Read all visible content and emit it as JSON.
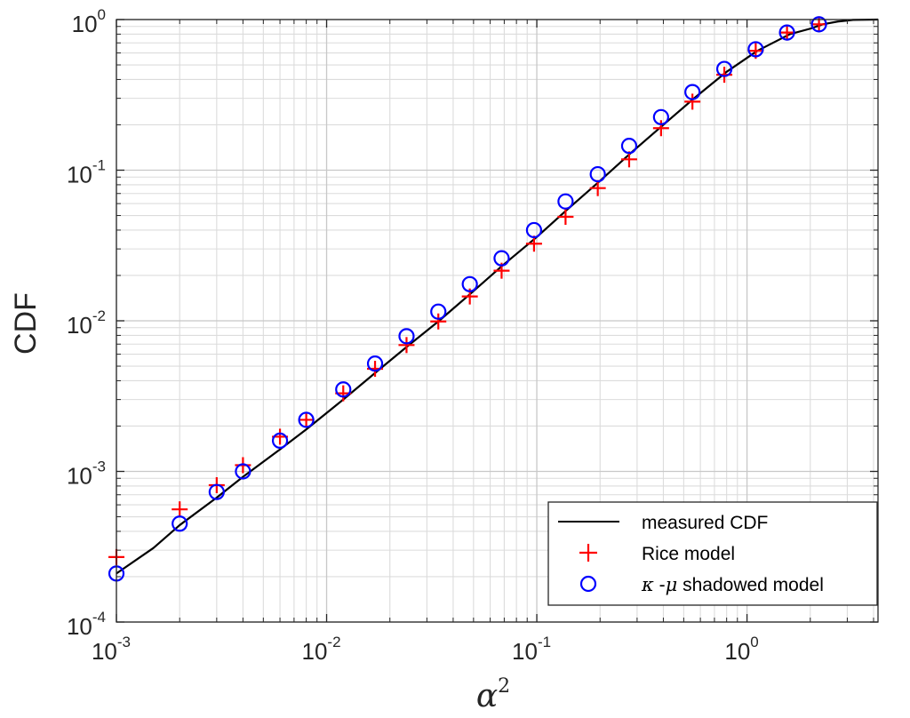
{
  "chart_data": {
    "type": "line",
    "xlabel": "α",
    "xlabel_superscript": "2",
    "ylabel": "CDF",
    "x_scale": "log",
    "y_scale": "log",
    "xlim": [
      0.001,
      4.2
    ],
    "ylim": [
      0.0001,
      1
    ],
    "grid": true,
    "legend_position": "bottom-right",
    "x_ticks": [
      {
        "base": "10",
        "exp": "-3",
        "value": 0.001
      },
      {
        "base": "10",
        "exp": "-2",
        "value": 0.01
      },
      {
        "base": "10",
        "exp": "-1",
        "value": 0.1
      },
      {
        "base": "10",
        "exp": "0",
        "value": 1
      }
    ],
    "y_ticks": [
      {
        "base": "10",
        "exp": "-4",
        "value": 0.0001
      },
      {
        "base": "10",
        "exp": "-3",
        "value": 0.001
      },
      {
        "base": "10",
        "exp": "-2",
        "value": 0.01
      },
      {
        "base": "10",
        "exp": "-1",
        "value": 0.1
      },
      {
        "base": "10",
        "exp": "0",
        "value": 1
      }
    ],
    "series": [
      {
        "name": "measured CDF",
        "style": "line",
        "color": "#000000",
        "x": [
          0.001,
          0.0015,
          0.002,
          0.003,
          0.004,
          0.006,
          0.008,
          0.012,
          0.017,
          0.024,
          0.034,
          0.048,
          0.068,
          0.1,
          0.14,
          0.2,
          0.28,
          0.4,
          0.56,
          0.8,
          1.12,
          1.6,
          2.0,
          2.3,
          2.7,
          3.2,
          4.2
        ],
        "y": [
          0.00021,
          0.00031,
          0.00044,
          0.00067,
          0.00092,
          0.0014,
          0.0019,
          0.003,
          0.0045,
          0.0067,
          0.0099,
          0.015,
          0.023,
          0.036,
          0.055,
          0.085,
          0.13,
          0.2,
          0.3,
          0.45,
          0.62,
          0.8,
          0.87,
          0.93,
          0.97,
          0.995,
          1.0
        ]
      },
      {
        "name": "Rice model",
        "style": "plus",
        "color": "#ff0000",
        "x": [
          0.001,
          0.002,
          0.003,
          0.004,
          0.006,
          0.008,
          0.012,
          0.017,
          0.024,
          0.034,
          0.048,
          0.068,
          0.097,
          0.137,
          0.195,
          0.275,
          0.39,
          0.55,
          0.78,
          1.1,
          1.55,
          2.2
        ],
        "y": [
          0.00027,
          0.00056,
          0.00081,
          0.0011,
          0.0017,
          0.0022,
          0.0033,
          0.0048,
          0.0069,
          0.0099,
          0.0145,
          0.0215,
          0.0325,
          0.049,
          0.076,
          0.118,
          0.19,
          0.285,
          0.43,
          0.62,
          0.82,
          0.93
        ]
      },
      {
        "name": "κ -μ shadowed model",
        "style": "circle",
        "color": "#0000ff",
        "x": [
          0.001,
          0.002,
          0.003,
          0.004,
          0.006,
          0.008,
          0.012,
          0.017,
          0.024,
          0.034,
          0.048,
          0.068,
          0.097,
          0.137,
          0.195,
          0.275,
          0.39,
          0.55,
          0.78,
          1.1,
          1.55,
          2.2
        ],
        "y": [
          0.00021,
          0.00045,
          0.00073,
          0.001,
          0.0016,
          0.0022,
          0.0035,
          0.0052,
          0.0079,
          0.0115,
          0.0175,
          0.026,
          0.04,
          0.062,
          0.094,
          0.145,
          0.225,
          0.33,
          0.47,
          0.635,
          0.82,
          0.93
        ]
      }
    ],
    "legend": {
      "entries": [
        "measured CDF",
        "Rice model",
        "κ -μ shadowed model"
      ],
      "greek_entry": {
        "kappa": "κ",
        "sep": " -",
        "mu": "μ",
        "rest": " shadowed model"
      }
    }
  }
}
